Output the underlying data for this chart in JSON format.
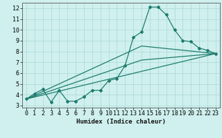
{
  "title": "",
  "xlabel": "Humidex (Indice chaleur)",
  "ylabel": "",
  "xlim": [
    -0.5,
    23.5
  ],
  "ylim": [
    2.8,
    12.5
  ],
  "xticks": [
    0,
    1,
    2,
    3,
    4,
    5,
    6,
    7,
    8,
    9,
    10,
    11,
    12,
    13,
    14,
    15,
    16,
    17,
    18,
    19,
    20,
    21,
    22,
    23
  ],
  "yticks": [
    3,
    4,
    5,
    6,
    7,
    8,
    9,
    10,
    11,
    12
  ],
  "bg_color": "#cff0ee",
  "grid_color": "#aad8d4",
  "line_color": "#1e7b6e",
  "curve1_x": [
    0,
    1,
    2,
    3,
    4,
    5,
    6,
    7,
    8,
    9,
    10,
    11,
    12,
    13,
    14,
    15,
    16,
    17,
    18,
    19,
    20,
    21,
    22,
    23
  ],
  "curve1_y": [
    3.6,
    4.1,
    4.5,
    3.3,
    4.4,
    3.4,
    3.4,
    3.8,
    4.4,
    4.4,
    5.3,
    5.5,
    6.7,
    9.3,
    9.8,
    12.1,
    12.1,
    11.4,
    10.0,
    9.0,
    8.9,
    8.3,
    8.1,
    7.8
  ],
  "curve2_x": [
    0,
    23
  ],
  "curve2_y": [
    3.6,
    7.8
  ],
  "curve3_x": [
    0,
    14,
    23
  ],
  "curve3_y": [
    3.6,
    8.5,
    7.8
  ],
  "curve4_x": [
    0,
    14,
    23
  ],
  "curve4_y": [
    3.6,
    7.2,
    7.8
  ],
  "xlabel_fontsize": 6.5,
  "tick_fontsize": 6,
  "lw": 0.9,
  "markersize": 2.0
}
